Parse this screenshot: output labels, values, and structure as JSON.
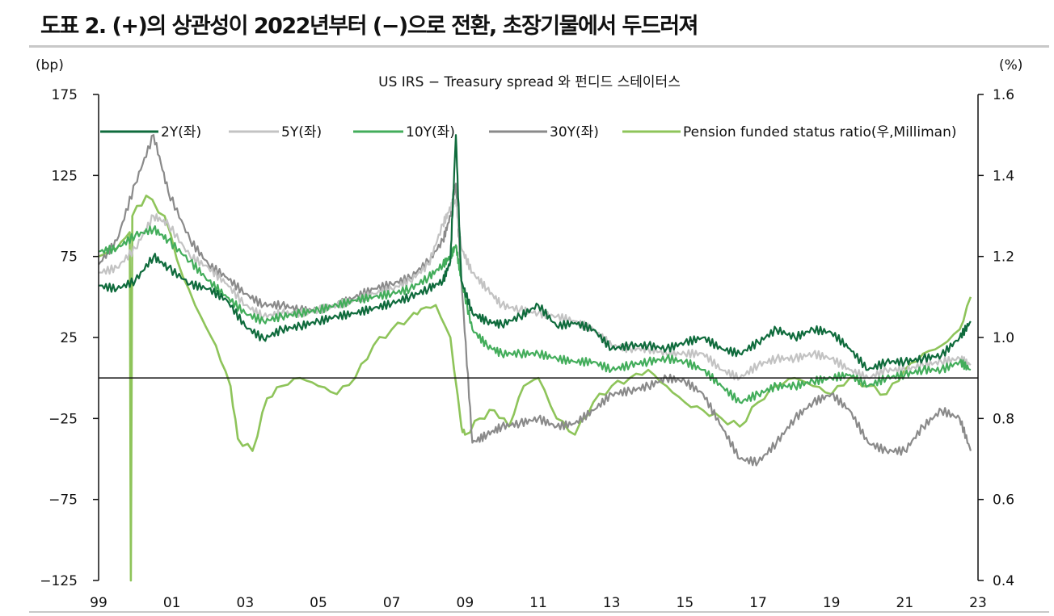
{
  "figure": {
    "title": "도표 2. (+)의 상관성이 2022년부터 (−)으로 전환, 초장기물에서 두드러져",
    "colors": {
      "text": "#111111",
      "rule": "#c8c8c8",
      "series_2y": "#0f6b3c",
      "series_5y": "#c3c3c3",
      "series_10y": "#43ad5b",
      "series_30y": "#8a8a8a",
      "series_pension": "#8ec45a"
    }
  },
  "chart_data": {
    "type": "line",
    "title": "US IRS − Treasury spread 와 펀디드 스테이터스",
    "left_unit": "(bp)",
    "right_unit": "(%)",
    "x_ticks": [
      "99",
      "01",
      "03",
      "05",
      "07",
      "09",
      "11",
      "13",
      "15",
      "17",
      "19",
      "21",
      "23"
    ],
    "xlim": [
      1999,
      2023
    ],
    "ylim_left": [
      -125,
      175
    ],
    "ylim_right": [
      0.4,
      1.6
    ],
    "y_ticks_left": [
      "175",
      "125",
      "75",
      "25",
      "−25",
      "−75",
      "−125"
    ],
    "y_ticks_right": [
      "1.6",
      "1.4",
      "1.2",
      "1.0",
      "0.8",
      "0.6",
      "0.4"
    ],
    "zero_line_left": 0,
    "legend_position": "top",
    "series": [
      {
        "name": "2Y(좌)",
        "axis": "left",
        "color": "#0f6b3c",
        "x": [
          1999.0,
          1999.5,
          2000.0,
          2000.5,
          2000.9,
          2001.5,
          2002.0,
          2002.5,
          2003.0,
          2003.5,
          2004.0,
          2004.5,
          2005.0,
          2005.5,
          2006.0,
          2006.5,
          2007.0,
          2007.5,
          2008.0,
          2008.4,
          2008.6,
          2008.75,
          2008.9,
          2009.2,
          2009.6,
          2010.0,
          2010.5,
          2011.0,
          2011.5,
          2012.0,
          2012.5,
          2013.0,
          2013.5,
          2014.0,
          2014.5,
          2015.0,
          2015.5,
          2016.0,
          2016.5,
          2017.0,
          2017.5,
          2018.0,
          2018.5,
          2019.0,
          2019.5,
          2020.0,
          2020.5,
          2021.0,
          2021.5,
          2022.0,
          2022.5,
          2022.8
        ],
        "y": [
          57,
          55,
          60,
          75,
          68,
          58,
          55,
          48,
          32,
          24,
          30,
          32,
          35,
          38,
          40,
          43,
          46,
          50,
          55,
          60,
          72,
          150,
          60,
          40,
          35,
          33,
          38,
          45,
          32,
          34,
          30,
          18,
          20,
          20,
          18,
          22,
          25,
          18,
          15,
          22,
          30,
          25,
          30,
          28,
          18,
          5,
          10,
          10,
          12,
          14,
          25,
          35
        ]
      },
      {
        "name": "5Y(좌)",
        "axis": "left",
        "color": "#c3c3c3",
        "x": [
          1999.0,
          1999.5,
          2000.0,
          2000.5,
          2000.9,
          2001.5,
          2002.0,
          2002.5,
          2003.0,
          2003.5,
          2004.0,
          2004.5,
          2005.0,
          2005.5,
          2006.0,
          2006.5,
          2007.0,
          2007.5,
          2008.0,
          2008.4,
          2008.6,
          2008.75,
          2008.9,
          2009.2,
          2009.6,
          2010.0,
          2010.5,
          2011.0,
          2011.5,
          2012.0,
          2012.5,
          2013.0,
          2013.5,
          2014.0,
          2014.5,
          2015.0,
          2015.5,
          2016.0,
          2016.5,
          2017.0,
          2017.5,
          2018.0,
          2018.5,
          2019.0,
          2019.5,
          2020.0,
          2020.5,
          2021.0,
          2021.5,
          2022.0,
          2022.5,
          2022.8
        ],
        "y": [
          65,
          68,
          80,
          100,
          95,
          75,
          68,
          58,
          45,
          38,
          40,
          40,
          42,
          45,
          48,
          52,
          55,
          60,
          70,
          95,
          105,
          110,
          80,
          65,
          55,
          45,
          42,
          40,
          38,
          35,
          30,
          20,
          18,
          18,
          15,
          15,
          15,
          5,
          0,
          8,
          12,
          12,
          15,
          12,
          5,
          0,
          5,
          5,
          8,
          10,
          12,
          8
        ]
      },
      {
        "name": "10Y(좌)",
        "axis": "left",
        "color": "#43ad5b",
        "x": [
          1999.0,
          1999.5,
          2000.0,
          2000.5,
          2000.9,
          2001.5,
          2002.0,
          2002.5,
          2003.0,
          2003.5,
          2004.0,
          2004.5,
          2005.0,
          2005.5,
          2006.0,
          2006.5,
          2007.0,
          2007.5,
          2008.0,
          2008.4,
          2008.6,
          2008.75,
          2008.9,
          2009.2,
          2009.6,
          2010.0,
          2010.5,
          2011.0,
          2011.5,
          2012.0,
          2012.5,
          2013.0,
          2013.5,
          2014.0,
          2014.5,
          2015.0,
          2015.5,
          2016.0,
          2016.5,
          2017.0,
          2017.5,
          2018.0,
          2018.5,
          2019.0,
          2019.5,
          2020.0,
          2020.5,
          2021.0,
          2021.5,
          2022.0,
          2022.5,
          2022.8
        ],
        "y": [
          78,
          80,
          88,
          92,
          85,
          72,
          60,
          50,
          40,
          35,
          38,
          40,
          42,
          45,
          48,
          50,
          52,
          55,
          62,
          70,
          75,
          82,
          60,
          30,
          20,
          15,
          15,
          15,
          12,
          10,
          10,
          5,
          8,
          10,
          12,
          10,
          5,
          -5,
          -15,
          -10,
          -5,
          -5,
          -2,
          0,
          2,
          -5,
          0,
          2,
          5,
          5,
          10,
          5
        ]
      },
      {
        "name": "30Y(좌)",
        "axis": "left",
        "color": "#8a8a8a",
        "x": [
          1999.0,
          1999.5,
          2000.0,
          2000.5,
          2000.9,
          2001.5,
          2002.0,
          2002.5,
          2003.0,
          2003.5,
          2004.0,
          2004.5,
          2005.0,
          2005.5,
          2006.0,
          2006.5,
          2007.0,
          2007.5,
          2008.0,
          2008.4,
          2008.6,
          2008.75,
          2008.9,
          2009.2,
          2009.6,
          2010.0,
          2010.5,
          2011.0,
          2011.5,
          2012.0,
          2012.5,
          2013.0,
          2013.5,
          2014.0,
          2014.5,
          2015.0,
          2015.5,
          2016.0,
          2016.5,
          2017.0,
          2017.5,
          2018.0,
          2018.5,
          2019.0,
          2019.5,
          2020.0,
          2020.5,
          2021.0,
          2021.5,
          2022.0,
          2022.5,
          2022.8
        ],
        "y": [
          70,
          85,
          120,
          150,
          115,
          85,
          70,
          62,
          52,
          45,
          45,
          42,
          42,
          45,
          50,
          55,
          58,
          62,
          72,
          85,
          100,
          120,
          60,
          -40,
          -35,
          -30,
          -28,
          -25,
          -30,
          -28,
          -20,
          -10,
          -8,
          -5,
          0,
          -2,
          -10,
          -30,
          -50,
          -52,
          -40,
          -25,
          -15,
          -10,
          -20,
          -40,
          -45,
          -45,
          -30,
          -20,
          -25,
          -45
        ]
      },
      {
        "name": "Pension funded status ratio(우,Milliman)",
        "axis": "right",
        "color": "#8ec45a",
        "x": [
          1999.0,
          1999.5,
          1999.85,
          1999.88,
          1999.92,
          2000.3,
          2000.8,
          2001.3,
          2001.8,
          2002.2,
          2002.6,
          2002.8,
          2003.2,
          2003.6,
          2004.0,
          2004.5,
          2005.0,
          2005.5,
          2006.0,
          2006.5,
          2007.0,
          2007.5,
          2007.8,
          2008.2,
          2008.6,
          2008.9,
          2009.0,
          2009.4,
          2009.8,
          2010.2,
          2010.6,
          2011.0,
          2011.5,
          2012.0,
          2012.5,
          2013.0,
          2013.5,
          2014.0,
          2014.5,
          2015.0,
          2015.5,
          2016.0,
          2016.5,
          2017.0,
          2017.5,
          2018.0,
          2018.5,
          2019.0,
          2019.5,
          2020.0,
          2020.5,
          2021.0,
          2021.5,
          2022.0,
          2022.5,
          2022.8
        ],
        "y": [
          1.2,
          1.22,
          1.26,
          0.4,
          1.3,
          1.35,
          1.3,
          1.15,
          1.05,
          0.98,
          0.88,
          0.75,
          0.72,
          0.85,
          0.88,
          0.9,
          0.88,
          0.86,
          0.9,
          0.98,
          1.02,
          1.05,
          1.07,
          1.08,
          1.0,
          0.78,
          0.76,
          0.8,
          0.82,
          0.78,
          0.88,
          0.9,
          0.8,
          0.76,
          0.84,
          0.88,
          0.9,
          0.92,
          0.88,
          0.84,
          0.82,
          0.8,
          0.78,
          0.84,
          0.88,
          0.9,
          0.88,
          0.86,
          0.9,
          0.88,
          0.86,
          0.92,
          0.96,
          0.98,
          1.02,
          1.1
        ]
      }
    ]
  }
}
